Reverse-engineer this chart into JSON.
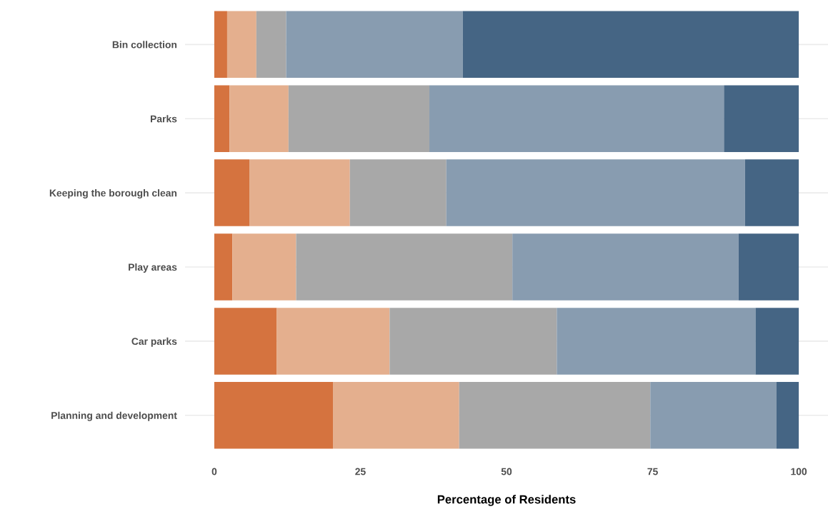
{
  "chart_data": {
    "type": "bar",
    "orientation": "horizontal",
    "stacked": true,
    "xlabel": "Percentage of Residents",
    "categories": [
      "Bin collection",
      "Parks",
      "Keeping the borough clean",
      "Play areas",
      "Car parks",
      "Planning and development"
    ],
    "series": [
      {
        "color": "#d5733f",
        "values": [
          2.2,
          2.6,
          6.0,
          3.1,
          10.7,
          20.3
        ]
      },
      {
        "color": "#e4af8e",
        "values": [
          5.0,
          10.1,
          17.2,
          10.9,
          19.3,
          21.6
        ]
      },
      {
        "color": "#a8a8a8",
        "values": [
          5.1,
          24.1,
          16.5,
          37.0,
          28.6,
          32.7
        ]
      },
      {
        "color": "#889cb0",
        "values": [
          30.2,
          50.4,
          51.1,
          38.7,
          34.0,
          21.6
        ]
      },
      {
        "color": "#456584",
        "values": [
          57.5,
          12.8,
          9.2,
          10.3,
          7.4,
          3.8
        ]
      }
    ],
    "xlim": [
      -5,
      105
    ],
    "xticks": [
      0,
      25,
      50,
      75,
      100
    ],
    "grid": "y"
  }
}
